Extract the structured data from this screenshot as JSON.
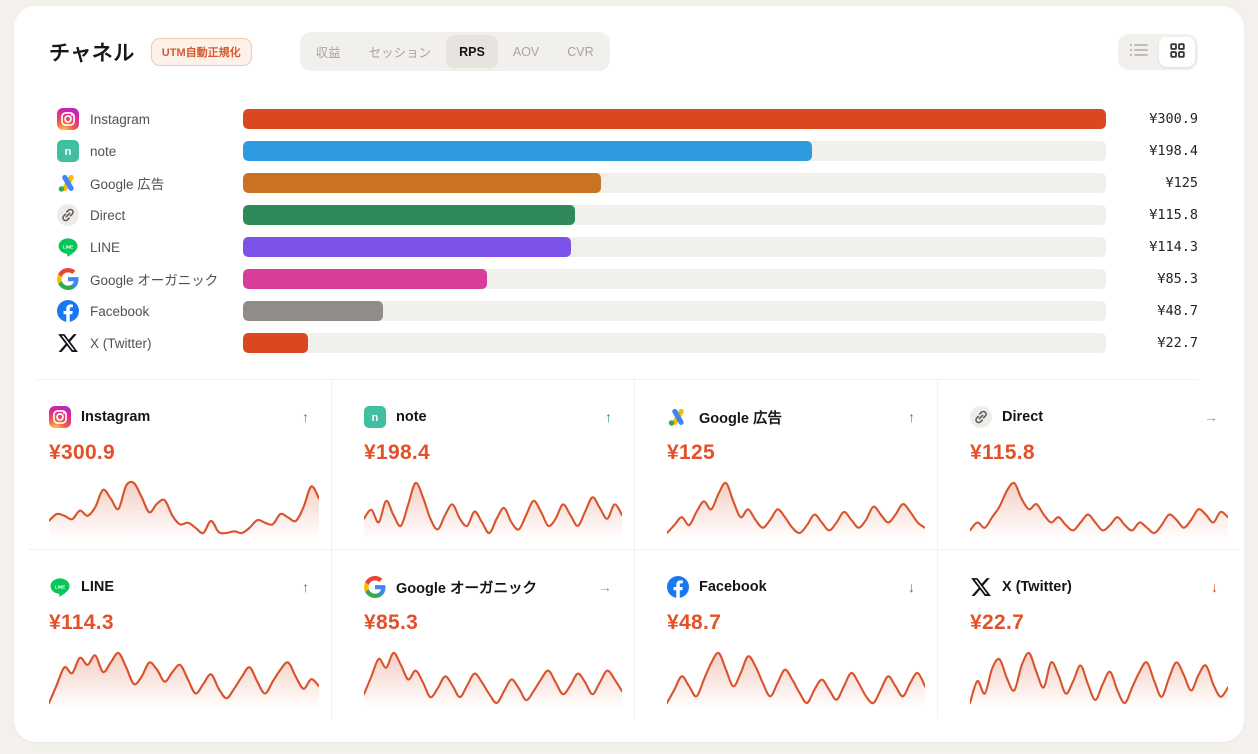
{
  "header": {
    "title": "チャネル",
    "badge": "UTM自動正規化",
    "tabs": [
      {
        "label": "収益",
        "active": false
      },
      {
        "label": "セッション",
        "active": false
      },
      {
        "label": "RPS",
        "active": true
      },
      {
        "label": "AOV",
        "active": false
      },
      {
        "label": "CVR",
        "active": false
      }
    ],
    "view_toggles": [
      {
        "name": "list-view",
        "active": false
      },
      {
        "name": "grid-view",
        "active": true
      }
    ]
  },
  "colors": {
    "page_bg": "#f4f1ec",
    "card_bg": "#ffffff",
    "track": "#f1efea",
    "value_accent": "#e2512a",
    "spark_line": "#d9532c",
    "trend_up": "#159a6c",
    "trend_flat": "#9d9a96",
    "trend_down": "#d8442a",
    "badge_text": "#d75a2e",
    "badge_bg": "#fdf1e9"
  },
  "trend_glyphs": {
    "up": "↑",
    "flat": "→",
    "down": "↓"
  },
  "channels": [
    {
      "name": "Instagram",
      "icon": "instagram",
      "value": 300.9,
      "value_label": "¥300.9",
      "bar_color": "#d9481f",
      "trend": "up",
      "spark": [
        44,
        52,
        50,
        46,
        56,
        50,
        60,
        80,
        70,
        58,
        85,
        88,
        72,
        54,
        64,
        68,
        50,
        40,
        42,
        36,
        30,
        44,
        31,
        30,
        32,
        30,
        36,
        45,
        42,
        40,
        52,
        48,
        44,
        60,
        84,
        70
      ]
    },
    {
      "name": "note",
      "icon": "note",
      "value": 198.4,
      "value_label": "¥198.4",
      "bar_color": "#2e9be1",
      "trend": "up",
      "spark": [
        50,
        55,
        48,
        60,
        52,
        46,
        58,
        70,
        62,
        50,
        44,
        52,
        58,
        50,
        46,
        54,
        48,
        42,
        50,
        56,
        48,
        44,
        52,
        60,
        54,
        46,
        50,
        58,
        52,
        46,
        54,
        62,
        56,
        50,
        58,
        52
      ]
    },
    {
      "name": "Google 広告",
      "icon": "google-ads",
      "value": 125,
      "value_label": "¥125",
      "bar_color": "#c97322",
      "trend": "up",
      "spark": [
        40,
        46,
        52,
        46,
        56,
        64,
        58,
        70,
        78,
        64,
        52,
        58,
        50,
        44,
        50,
        58,
        52,
        44,
        40,
        46,
        54,
        48,
        42,
        48,
        56,
        50,
        44,
        50,
        60,
        54,
        48,
        54,
        62,
        56,
        48,
        44
      ]
    },
    {
      "name": "Direct",
      "icon": "direct",
      "value": 115.8,
      "value_label": "¥115.8",
      "bar_color": "#2e8b59",
      "trend": "flat",
      "spark": [
        38,
        44,
        40,
        48,
        56,
        68,
        74,
        62,
        54,
        58,
        50,
        44,
        48,
        42,
        38,
        44,
        50,
        44,
        38,
        42,
        48,
        42,
        38,
        44,
        40,
        36,
        42,
        50,
        46,
        40,
        46,
        54,
        50,
        44,
        52,
        48
      ]
    },
    {
      "name": "LINE",
      "icon": "line",
      "value": 114.3,
      "value_label": "¥114.3",
      "bar_color": "#7c52e8",
      "trend": "up",
      "spark": [
        40,
        55,
        70,
        65,
        78,
        72,
        80,
        66,
        74,
        82,
        70,
        56,
        62,
        74,
        68,
        58,
        66,
        72,
        60,
        48,
        56,
        64,
        52,
        44,
        52,
        62,
        70,
        58,
        48,
        58,
        68,
        74,
        62,
        52,
        60,
        54
      ]
    },
    {
      "name": "Google オーガニック",
      "icon": "google",
      "value": 85.3,
      "value_label": "¥85.3",
      "bar_color": "#d83e99",
      "trend": "flat",
      "spark": [
        50,
        62,
        74,
        68,
        78,
        70,
        60,
        66,
        58,
        48,
        54,
        62,
        56,
        48,
        56,
        64,
        58,
        50,
        44,
        52,
        60,
        54,
        46,
        52,
        60,
        66,
        58,
        50,
        56,
        64,
        58,
        50,
        58,
        66,
        60,
        52
      ]
    },
    {
      "name": "Facebook",
      "icon": "facebook",
      "value": 48.7,
      "value_label": "¥48.7",
      "bar_color": "#908c88",
      "trend": "down",
      "spark": [
        44,
        52,
        60,
        54,
        48,
        58,
        68,
        74,
        64,
        54,
        62,
        72,
        66,
        56,
        48,
        56,
        64,
        58,
        50,
        44,
        52,
        58,
        52,
        46,
        54,
        62,
        56,
        48,
        44,
        52,
        60,
        54,
        48,
        56,
        62,
        54
      ]
    },
    {
      "name": "X (Twitter)",
      "icon": "x-twitter",
      "value": 22.7,
      "value_label": "¥22.7",
      "bar_color": "#d9481f",
      "trend": "down",
      "spark": [
        46,
        60,
        52,
        68,
        74,
        62,
        54,
        70,
        78,
        66,
        56,
        72,
        64,
        52,
        60,
        70,
        58,
        48,
        58,
        66,
        54,
        46,
        56,
        66,
        72,
        60,
        50,
        62,
        72,
        64,
        54,
        64,
        70,
        58,
        50,
        56
      ]
    }
  ],
  "chart_data": {
    "type": "bar",
    "title": "チャネル",
    "metric": "RPS",
    "orientation": "horizontal",
    "categories": [
      "Instagram",
      "note",
      "Google 広告",
      "Direct",
      "LINE",
      "Google オーガニック",
      "Facebook",
      "X (Twitter)"
    ],
    "values": [
      300.9,
      198.4,
      125,
      115.8,
      114.3,
      85.3,
      48.7,
      22.7
    ],
    "value_labels": [
      "¥300.9",
      "¥198.4",
      "¥125",
      "¥115.8",
      "¥114.3",
      "¥85.3",
      "¥48.7",
      "¥22.7"
    ],
    "bar_colors": [
      "#d9481f",
      "#2e9be1",
      "#c97322",
      "#2e8b59",
      "#7c52e8",
      "#d83e99",
      "#908c88",
      "#d9481f"
    ],
    "xlim": [
      0,
      300.9
    ],
    "trends": [
      "up",
      "up",
      "up",
      "flat",
      "up",
      "flat",
      "down",
      "down"
    ]
  }
}
